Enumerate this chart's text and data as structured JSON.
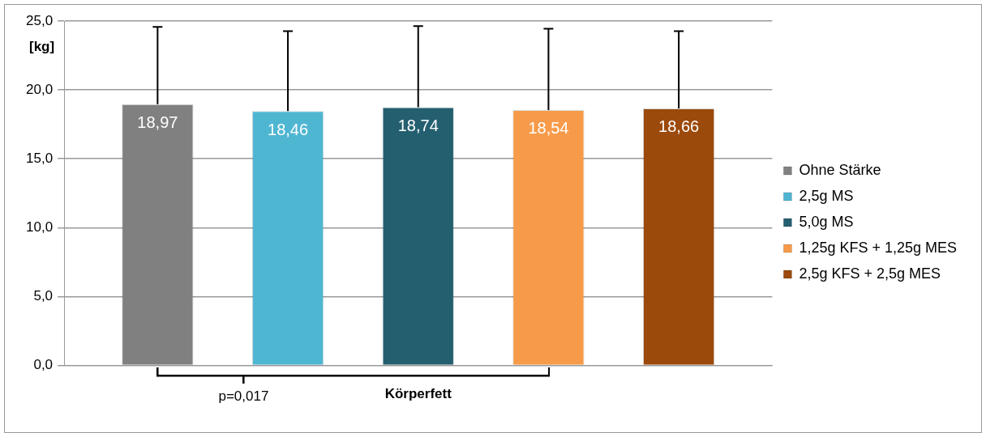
{
  "chart_data": {
    "type": "bar",
    "ylabel": "[kg]",
    "categories": [
      "Körperfett"
    ],
    "series": [
      {
        "name": "Ohne Stärke",
        "color": "#808080",
        "values": [
          18.97
        ],
        "errors": [
          5.6
        ],
        "value_labels": [
          "18,97"
        ]
      },
      {
        "name": "2,5g MS",
        "color": "#4fb6d2",
        "values": [
          18.46
        ],
        "errors": [
          5.8
        ],
        "value_labels": [
          "18,46"
        ]
      },
      {
        "name": "5,0g MS",
        "color": "#245f70",
        "values": [
          18.74
        ],
        "errors": [
          5.9
        ],
        "value_labels": [
          "18,74"
        ]
      },
      {
        "name": "1,25g KFS + 1,25g MES",
        "color": "#f79b4a",
        "values": [
          18.54
        ],
        "errors": [
          5.9
        ],
        "value_labels": [
          "18,54"
        ]
      },
      {
        "name": "2,5g KFS + 2,5g MES",
        "color": "#9b4a0b",
        "values": [
          18.66
        ],
        "errors": [
          5.6
        ],
        "value_labels": [
          "18,66"
        ]
      }
    ],
    "ylim": [
      0,
      25
    ],
    "yticks": [
      {
        "value": 0,
        "label": "0,0"
      },
      {
        "value": 5,
        "label": "5,0"
      },
      {
        "value": 10,
        "label": "10,0"
      },
      {
        "value": 15,
        "label": "15,0"
      },
      {
        "value": 20,
        "label": "20,0"
      },
      {
        "value": 25,
        "label": "25,0"
      }
    ],
    "grid": "y",
    "legend": "right",
    "annotations": [
      "p=0,017"
    ]
  }
}
